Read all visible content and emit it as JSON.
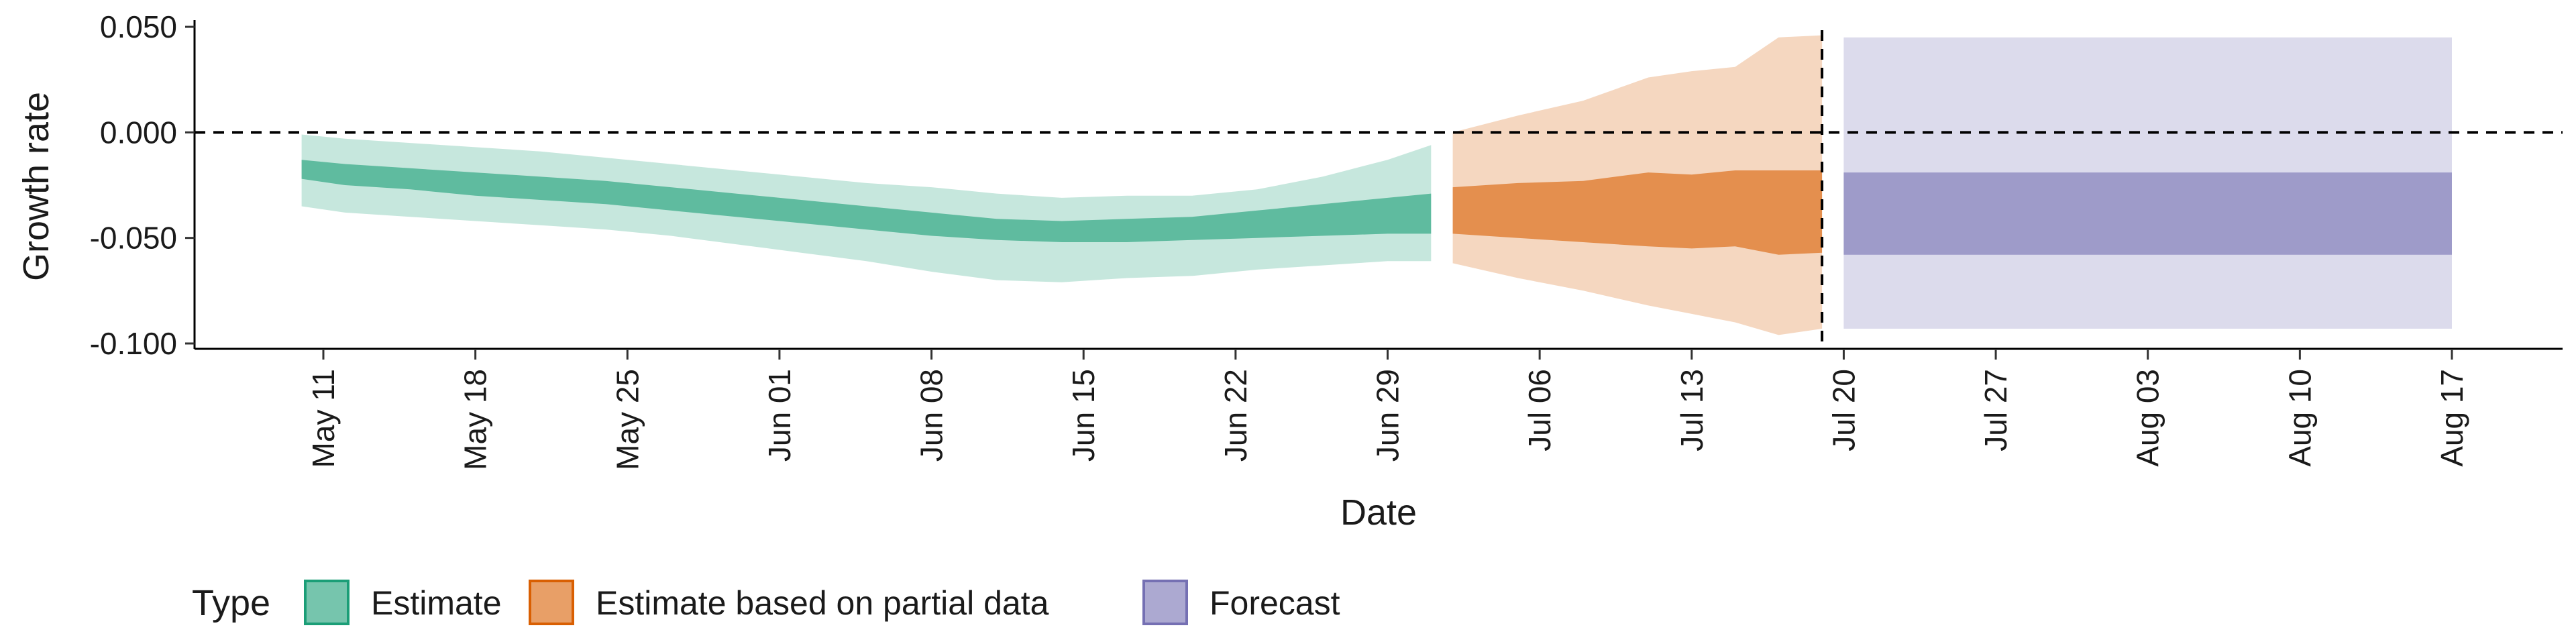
{
  "chart_data": {
    "type": "area",
    "xlabel": "Date",
    "ylabel": "Growth rate",
    "ylim": [
      -0.1,
      0.05
    ],
    "y_ticks": [
      0.05,
      0.0,
      -0.05,
      -0.1
    ],
    "y_tick_labels": [
      "0.050",
      "0.000",
      "-0.050",
      "-0.100"
    ],
    "x_range": [
      "2020-05-03",
      "2020-08-22"
    ],
    "x_ticks": [
      "2020-05-11",
      "2020-05-18",
      "2020-05-25",
      "2020-06-01",
      "2020-06-08",
      "2020-06-15",
      "2020-06-22",
      "2020-06-29",
      "2020-07-06",
      "2020-07-13",
      "2020-07-20",
      "2020-07-27",
      "2020-08-03",
      "2020-08-10",
      "2020-08-17"
    ],
    "x_tick_labels": [
      "May 11",
      "May 18",
      "May 25",
      "Jun 01",
      "Jun 08",
      "Jun 15",
      "Jun 22",
      "Jun 29",
      "Jul 06",
      "Jul 13",
      "Jul 20",
      "Jul 27",
      "Aug 03",
      "Aug 10",
      "Aug 17"
    ],
    "reference_lines": {
      "horizontal_y": 0.0,
      "vertical_date": "2020-07-19",
      "style": "dashed"
    },
    "legend": {
      "title": "Type",
      "position": "bottom-left"
    },
    "series": [
      {
        "name": "Estimate",
        "color": "#1b9e77",
        "dates": [
          "2020-05-10",
          "2020-05-12",
          "2020-05-15",
          "2020-05-18",
          "2020-05-21",
          "2020-05-24",
          "2020-05-27",
          "2020-05-30",
          "2020-06-02",
          "2020-06-05",
          "2020-06-08",
          "2020-06-11",
          "2020-06-14",
          "2020-06-17",
          "2020-06-20",
          "2020-06-23",
          "2020-06-26",
          "2020-06-29",
          "2020-07-01"
        ],
        "outer_upper": [
          -0.001,
          -0.003,
          -0.005,
          -0.007,
          -0.009,
          -0.012,
          -0.015,
          -0.018,
          -0.021,
          -0.024,
          -0.026,
          -0.029,
          -0.031,
          -0.03,
          -0.03,
          -0.027,
          -0.021,
          -0.013,
          -0.006
        ],
        "inner_upper": [
          -0.013,
          -0.015,
          -0.017,
          -0.019,
          -0.021,
          -0.023,
          -0.026,
          -0.029,
          -0.032,
          -0.035,
          -0.038,
          -0.041,
          -0.042,
          -0.041,
          -0.04,
          -0.037,
          -0.034,
          -0.031,
          -0.029
        ],
        "inner_lower": [
          -0.022,
          -0.025,
          -0.027,
          -0.03,
          -0.032,
          -0.034,
          -0.037,
          -0.04,
          -0.043,
          -0.046,
          -0.049,
          -0.051,
          -0.052,
          -0.052,
          -0.051,
          -0.05,
          -0.049,
          -0.048,
          -0.048
        ],
        "outer_lower": [
          -0.035,
          -0.038,
          -0.04,
          -0.042,
          -0.044,
          -0.046,
          -0.049,
          -0.053,
          -0.057,
          -0.061,
          -0.066,
          -0.07,
          -0.071,
          -0.069,
          -0.068,
          -0.065,
          -0.063,
          -0.061,
          -0.061
        ]
      },
      {
        "name": "Estimate based on partial data",
        "color": "#d95f02",
        "dates": [
          "2020-07-02",
          "2020-07-05",
          "2020-07-08",
          "2020-07-11",
          "2020-07-13",
          "2020-07-15",
          "2020-07-17",
          "2020-07-19"
        ],
        "outer_upper": [
          0.0,
          0.008,
          0.015,
          0.026,
          0.029,
          0.031,
          0.045,
          0.046
        ],
        "inner_upper": [
          -0.026,
          -0.024,
          -0.023,
          -0.019,
          -0.02,
          -0.018,
          -0.018,
          -0.018
        ],
        "inner_lower": [
          -0.048,
          -0.05,
          -0.052,
          -0.054,
          -0.055,
          -0.054,
          -0.058,
          -0.057
        ],
        "outer_lower": [
          -0.062,
          -0.069,
          -0.075,
          -0.082,
          -0.086,
          -0.09,
          -0.096,
          -0.093
        ]
      },
      {
        "name": "Forecast",
        "color": "#7570b3",
        "dates": [
          "2020-07-20",
          "2020-08-17"
        ],
        "outer_upper": [
          0.045,
          0.045
        ],
        "inner_upper": [
          -0.019,
          -0.019
        ],
        "inner_lower": [
          -0.058,
          -0.058
        ],
        "outer_lower": [
          -0.093,
          -0.093
        ]
      }
    ]
  }
}
